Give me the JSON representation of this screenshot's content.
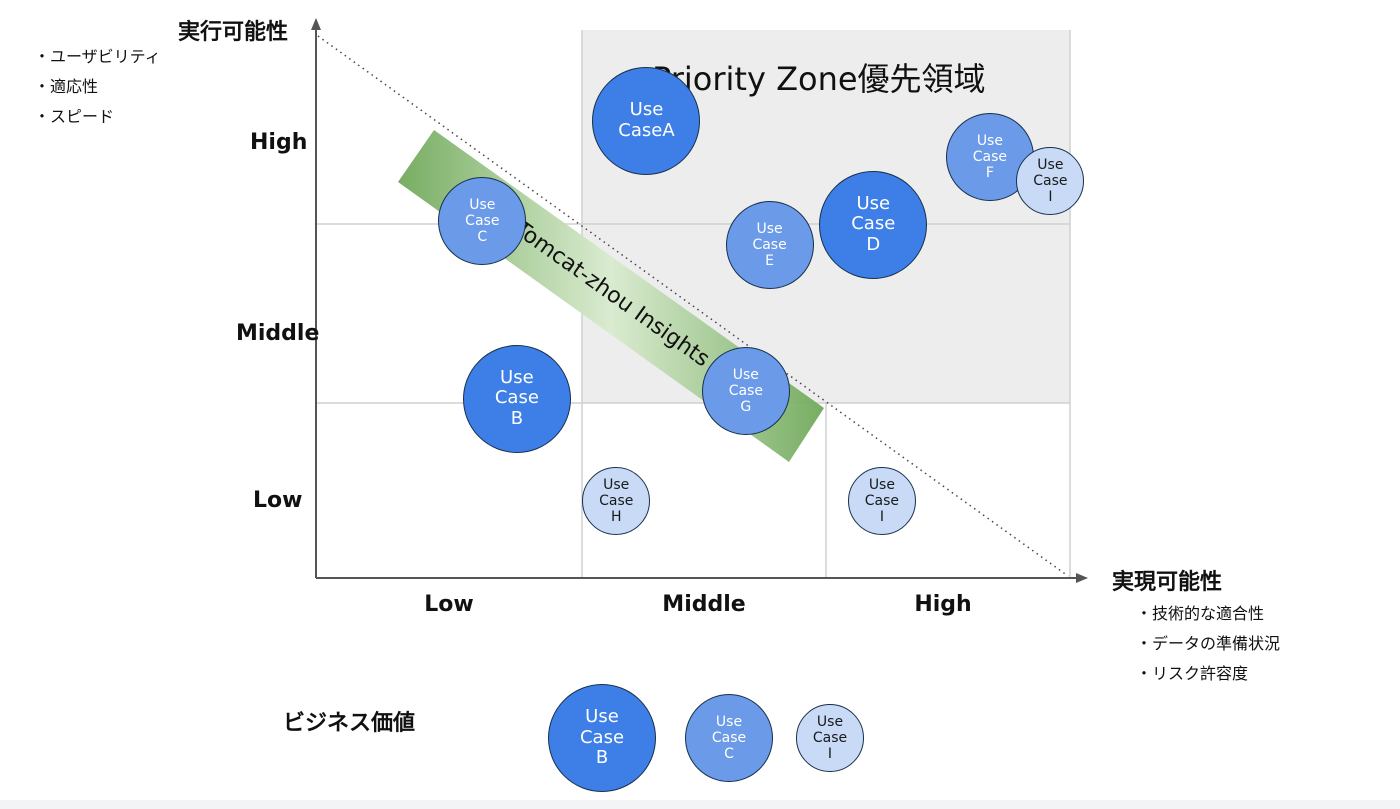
{
  "chart_data": {
    "type": "scatter",
    "title": "",
    "y_axis": {
      "title": "実行可能性",
      "criteria": [
        "・ユーザビリティ",
        "・適応性",
        "・スピード"
      ],
      "ticks": [
        "High",
        "Middle",
        "Low"
      ]
    },
    "x_axis": {
      "title": "実現可能性",
      "criteria": [
        "・技術的な適合性",
        "・データの準備状況",
        "・リスク許容度"
      ],
      "ticks": [
        "Low",
        "Middle",
        "High"
      ]
    },
    "zone_label": "Priority Zone優先領域",
    "band_label": "Tomcat-zhou Insights",
    "size_legend": {
      "title": "ビジネス価値",
      "items": [
        {
          "label": "Use\nCase\nB",
          "size": "large",
          "color": "#3d7fe6"
        },
        {
          "label": "Use\nCase\nC",
          "size": "medium",
          "color": "#6a9ae8"
        },
        {
          "label": "Use\nCase\nI",
          "size": "small",
          "color": "#c8daf6"
        }
      ]
    },
    "points": [
      {
        "label": "Use\nCaseA",
        "x": 1.53,
        "y": 2.5,
        "size": "large",
        "color": "#3d7fe6"
      },
      {
        "label": "Use\nCase\nB",
        "x": 0.93,
        "y": 0.98,
        "size": "large",
        "color": "#3d7fe6"
      },
      {
        "label": "Use\nCase\nC",
        "x": 0.77,
        "y": 1.95,
        "size": "medium",
        "color": "#6a9ae8"
      },
      {
        "label": "Use\nCase\nD",
        "x": 2.58,
        "y": 1.93,
        "size": "large",
        "color": "#3d7fe6"
      },
      {
        "label": "Use\nCase\nE",
        "x": 2.1,
        "y": 1.82,
        "size": "medium",
        "color": "#6a9ae8"
      },
      {
        "label": "Use\nCase\nF",
        "x": 3.12,
        "y": 2.3,
        "size": "medium",
        "color": "#6a9ae8"
      },
      {
        "label": "Use\nCase\nG",
        "x": 1.99,
        "y": 1.02,
        "size": "medium",
        "color": "#6a9ae8"
      },
      {
        "label": "Use\nCase\nH",
        "x": 1.39,
        "y": 0.42,
        "size": "small",
        "color": "#c8daf6"
      },
      {
        "label": "Use\nCase\nI",
        "x": 3.4,
        "y": 2.17,
        "size": "small",
        "color": "#c8daf6"
      },
      {
        "label": "Use\nCase\nI",
        "x": 2.62,
        "y": 0.42,
        "size": "small",
        "color": "#c8daf6"
      }
    ],
    "xlim": [
      0,
      3.5
    ],
    "ylim": [
      0,
      3
    ]
  }
}
